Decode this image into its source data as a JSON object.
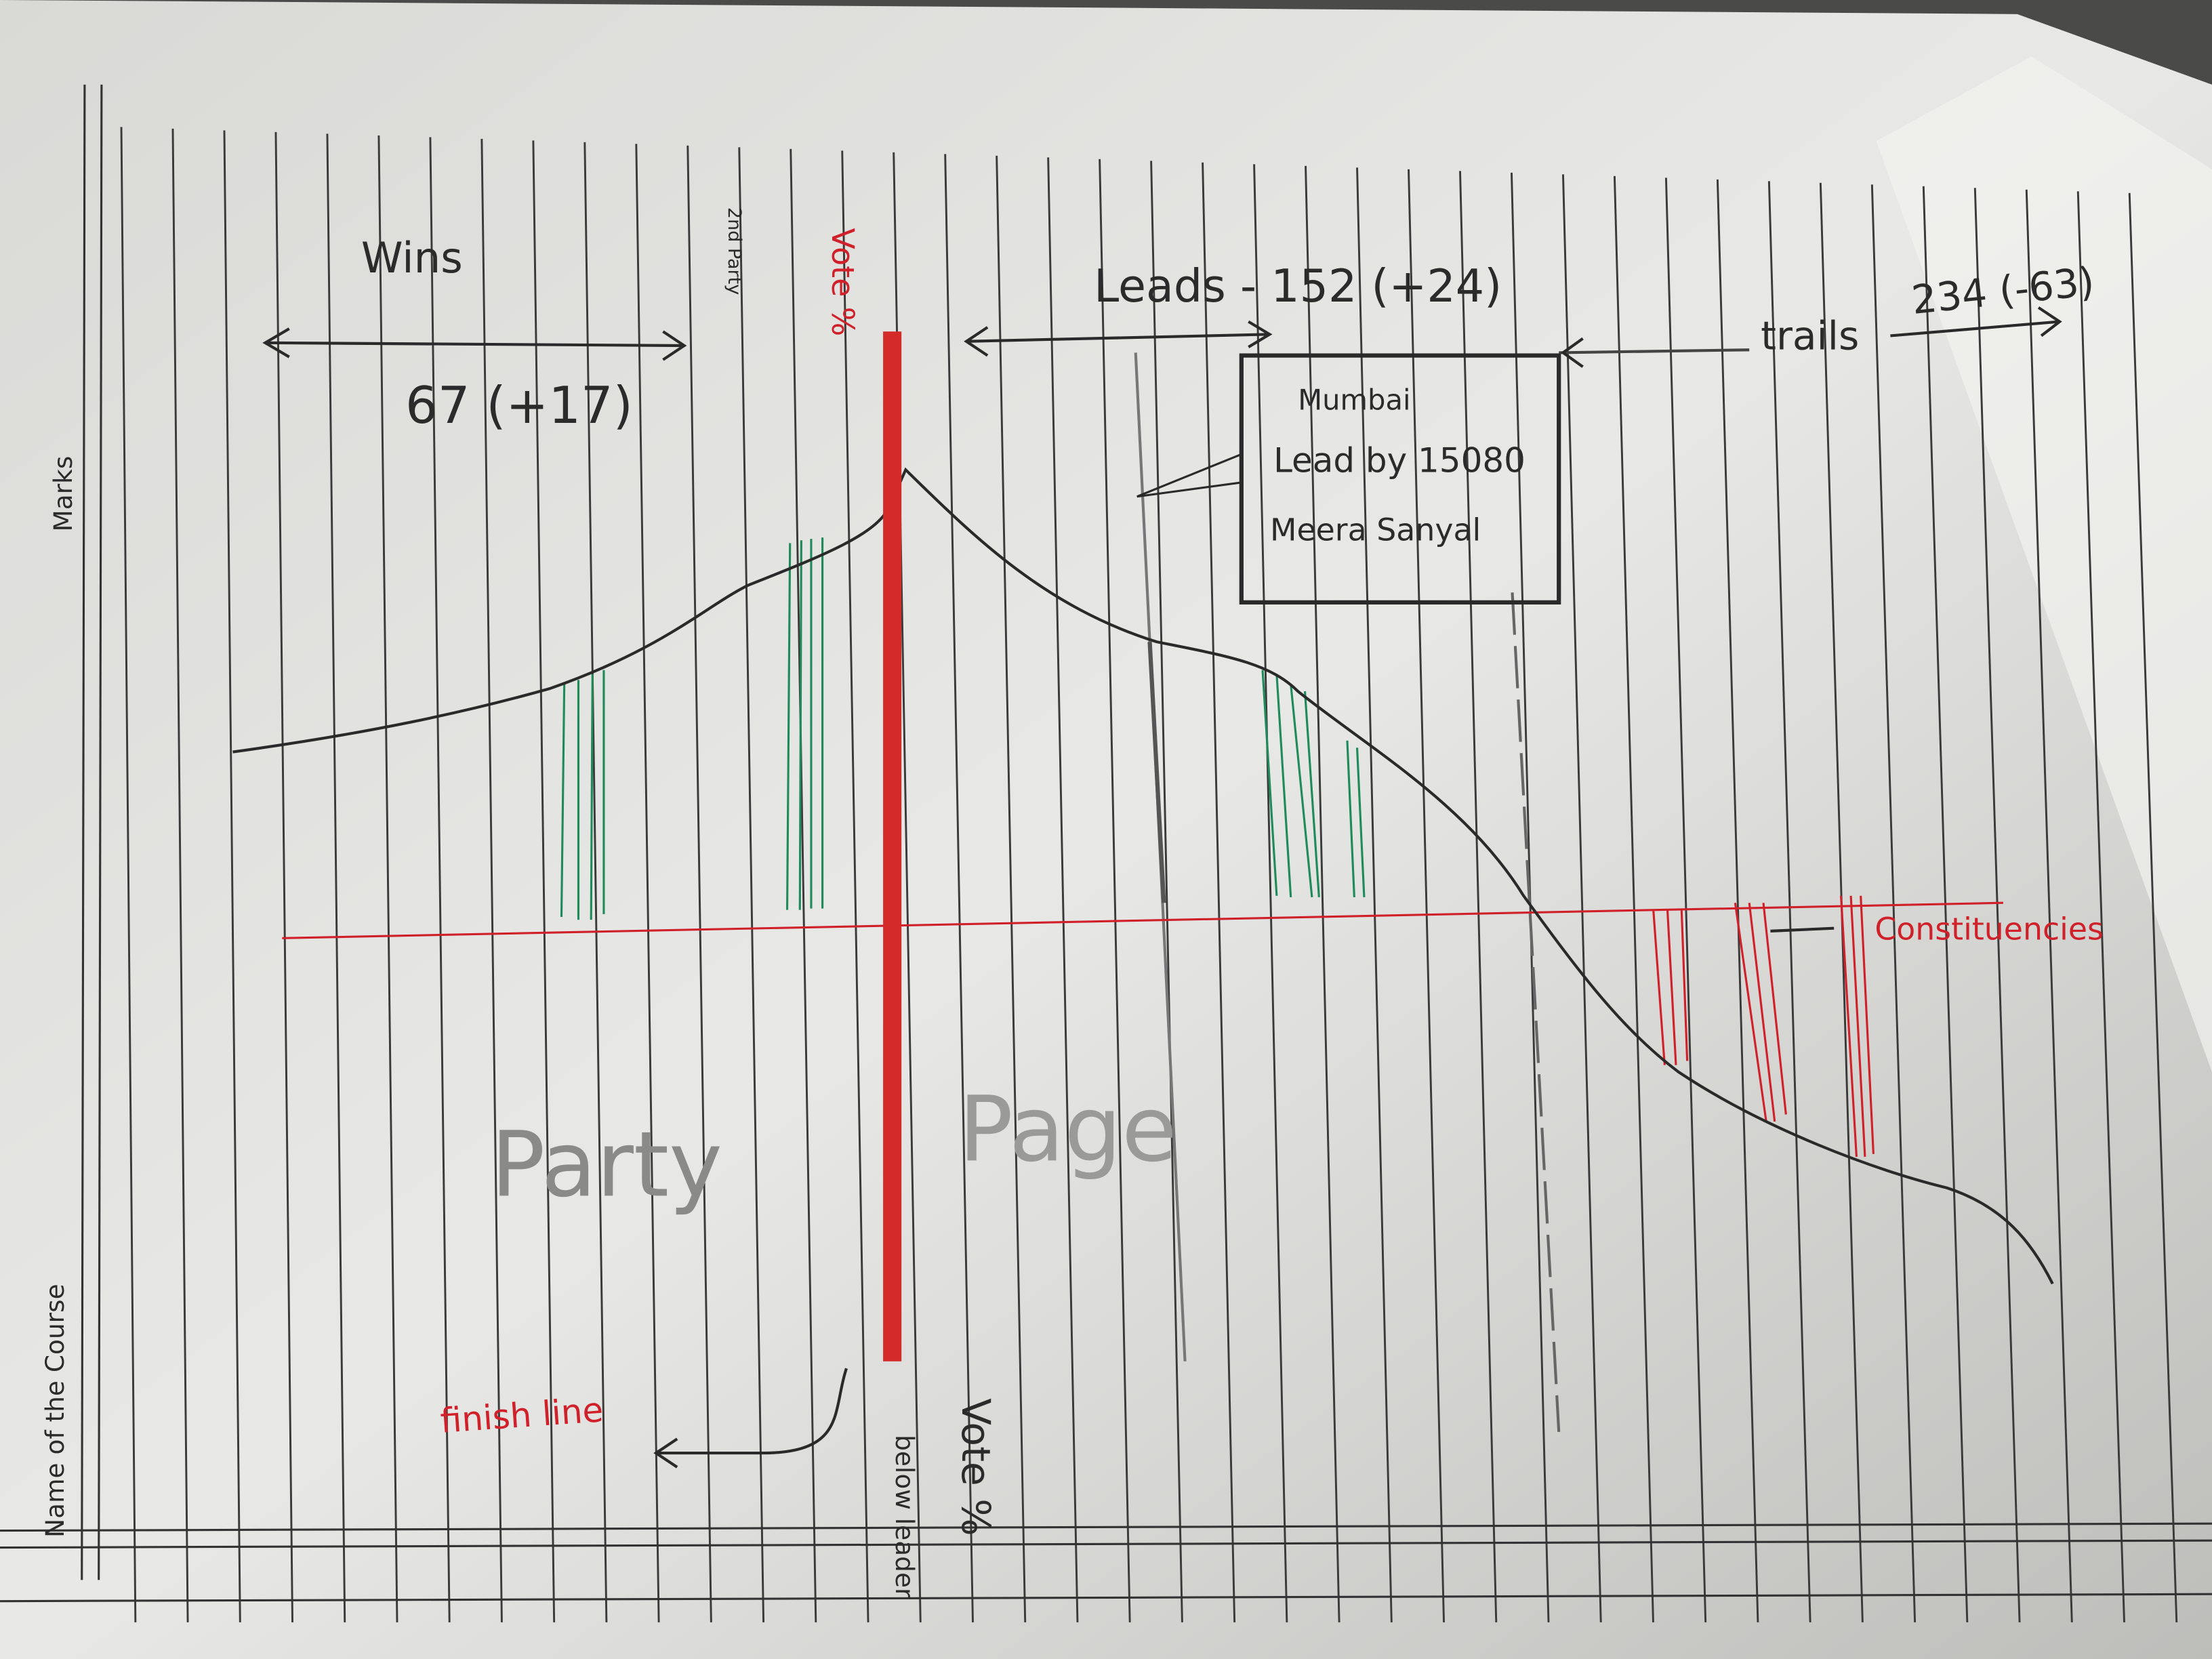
{
  "sidebar": {
    "marks_label": "Marks",
    "course_label": "Name of the Course"
  },
  "wins": {
    "label": "Wins",
    "count": "67 (+17)"
  },
  "second_party_note": "2nd Party",
  "vote_share_label": "Vote %",
  "leads": {
    "label": "Leads - 152 (+24)"
  },
  "trails": {
    "label": "trails",
    "count": "234 (-63)"
  },
  "callout": {
    "constituency": "Mumbai",
    "margin": "Lead by 15080",
    "candidate": "Meera Sanyal"
  },
  "constituencies_label": "Constituencies",
  "watermark": {
    "left": "Party",
    "right": "Page"
  },
  "finish_line_label": "finish line",
  "below_leader": {
    "label": "Vote %",
    "sublabel": "below leader"
  }
}
